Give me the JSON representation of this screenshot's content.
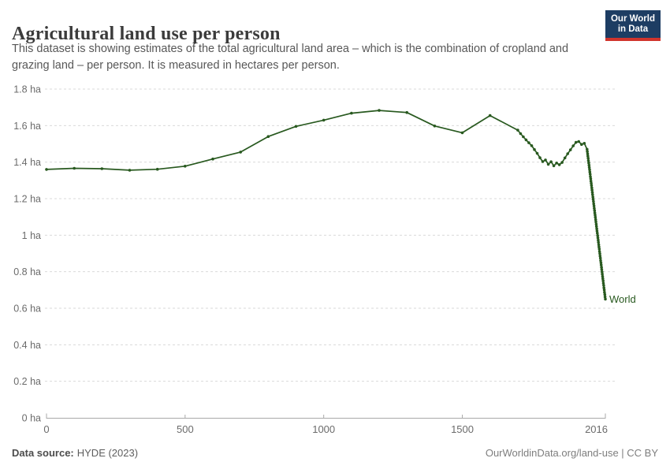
{
  "header": {
    "title": "Agricultural land use per person",
    "subtitle_lines": [
      "This dataset is showing estimates of the total agricultural land area – which is the combination of cropland and",
      "grazing land – per person. It is measured in hectares per person."
    ],
    "logo": {
      "line1": "Our World",
      "line2": "in Data",
      "bg_color": "#1d3d63",
      "accent_color": "#d0342c"
    }
  },
  "chart_data": {
    "type": "line",
    "title": "Agricultural land use per person",
    "unit": "hectares per person",
    "xlim": [
      0,
      2016
    ],
    "ylim": [
      0,
      1.8
    ],
    "grid": "horizontal-dashed",
    "grid_color": "#d9d9d9",
    "axis_color": "#a9a9a9",
    "tick_label_color": "#6b6b6b",
    "x_ticks": [
      {
        "value": 0,
        "label": "0"
      },
      {
        "value": 500,
        "label": "500"
      },
      {
        "value": 1000,
        "label": "1000"
      },
      {
        "value": 1500,
        "label": "1500"
      },
      {
        "value": 2016,
        "label": "2016"
      }
    ],
    "y_ticks": [
      {
        "value": 0,
        "label": "0 ha"
      },
      {
        "value": 0.2,
        "label": "0.2 ha"
      },
      {
        "value": 0.4,
        "label": "0.4 ha"
      },
      {
        "value": 0.6,
        "label": "0.6 ha"
      },
      {
        "value": 0.8,
        "label": "0.8 ha"
      },
      {
        "value": 1,
        "label": "1 ha"
      },
      {
        "value": 1.2,
        "label": "1.2 ha"
      },
      {
        "value": 1.4,
        "label": "1.4 ha"
      },
      {
        "value": 1.6,
        "label": "1.6 ha"
      },
      {
        "value": 1.8,
        "label": "1.8 ha"
      }
    ],
    "series": [
      {
        "name": "World",
        "color": "#28591f",
        "points": [
          [
            0,
            1.36
          ],
          [
            100,
            1.366
          ],
          [
            200,
            1.364
          ],
          [
            300,
            1.356
          ],
          [
            400,
            1.361
          ],
          [
            500,
            1.378
          ],
          [
            600,
            1.417
          ],
          [
            700,
            1.455
          ],
          [
            800,
            1.54
          ],
          [
            900,
            1.596
          ],
          [
            1000,
            1.63
          ],
          [
            1100,
            1.668
          ],
          [
            1200,
            1.683
          ],
          [
            1300,
            1.672
          ],
          [
            1400,
            1.598
          ],
          [
            1500,
            1.561
          ],
          [
            1600,
            1.655
          ],
          [
            1700,
            1.575
          ],
          [
            1710,
            1.556
          ],
          [
            1720,
            1.539
          ],
          [
            1730,
            1.522
          ],
          [
            1740,
            1.506
          ],
          [
            1750,
            1.49
          ],
          [
            1760,
            1.469
          ],
          [
            1770,
            1.448
          ],
          [
            1780,
            1.424
          ],
          [
            1790,
            1.403
          ],
          [
            1800,
            1.412
          ],
          [
            1810,
            1.388
          ],
          [
            1820,
            1.402
          ],
          [
            1830,
            1.38
          ],
          [
            1840,
            1.395
          ],
          [
            1850,
            1.386
          ],
          [
            1860,
            1.398
          ],
          [
            1870,
            1.423
          ],
          [
            1880,
            1.446
          ],
          [
            1890,
            1.467
          ],
          [
            1900,
            1.489
          ],
          [
            1910,
            1.508
          ],
          [
            1920,
            1.513
          ],
          [
            1930,
            1.497
          ],
          [
            1940,
            1.503
          ],
          [
            1950,
            1.47
          ],
          [
            1951,
            1.458
          ],
          [
            1952,
            1.445
          ],
          [
            1953,
            1.433
          ],
          [
            1954,
            1.421
          ],
          [
            1955,
            1.408
          ],
          [
            1956,
            1.396
          ],
          [
            1957,
            1.383
          ],
          [
            1958,
            1.371
          ],
          [
            1959,
            1.359
          ],
          [
            1960,
            1.346
          ],
          [
            1961,
            1.334
          ],
          [
            1962,
            1.321
          ],
          [
            1963,
            1.309
          ],
          [
            1964,
            1.296
          ],
          [
            1965,
            1.284
          ],
          [
            1966,
            1.272
          ],
          [
            1967,
            1.259
          ],
          [
            1968,
            1.247
          ],
          [
            1969,
            1.234
          ],
          [
            1970,
            1.222
          ],
          [
            1971,
            1.209
          ],
          [
            1972,
            1.197
          ],
          [
            1973,
            1.185
          ],
          [
            1974,
            1.172
          ],
          [
            1975,
            1.16
          ],
          [
            1976,
            1.147
          ],
          [
            1977,
            1.135
          ],
          [
            1978,
            1.122
          ],
          [
            1979,
            1.11
          ],
          [
            1980,
            1.098
          ],
          [
            1981,
            1.085
          ],
          [
            1982,
            1.073
          ],
          [
            1983,
            1.06
          ],
          [
            1984,
            1.048
          ],
          [
            1985,
            1.035
          ],
          [
            1986,
            1.023
          ],
          [
            1987,
            1.011
          ],
          [
            1988,
            0.998
          ],
          [
            1989,
            0.986
          ],
          [
            1990,
            0.973
          ],
          [
            1991,
            0.961
          ],
          [
            1992,
            0.948
          ],
          [
            1993,
            0.936
          ],
          [
            1994,
            0.924
          ],
          [
            1995,
            0.911
          ],
          [
            1996,
            0.899
          ],
          [
            1997,
            0.886
          ],
          [
            1998,
            0.874
          ],
          [
            1999,
            0.861
          ],
          [
            2000,
            0.849
          ],
          [
            2001,
            0.837
          ],
          [
            2002,
            0.824
          ],
          [
            2003,
            0.812
          ],
          [
            2004,
            0.799
          ],
          [
            2005,
            0.787
          ],
          [
            2006,
            0.774
          ],
          [
            2007,
            0.762
          ],
          [
            2008,
            0.75
          ],
          [
            2009,
            0.737
          ],
          [
            2010,
            0.725
          ],
          [
            2011,
            0.712
          ],
          [
            2012,
            0.7
          ],
          [
            2013,
            0.687
          ],
          [
            2014,
            0.675
          ],
          [
            2015,
            0.662
          ],
          [
            2016,
            0.65
          ]
        ]
      }
    ]
  },
  "footer": {
    "source_label": "Data source:",
    "source_value": "HYDE (2023)",
    "credit": "OurWorldinData.org/land-use | CC BY"
  }
}
